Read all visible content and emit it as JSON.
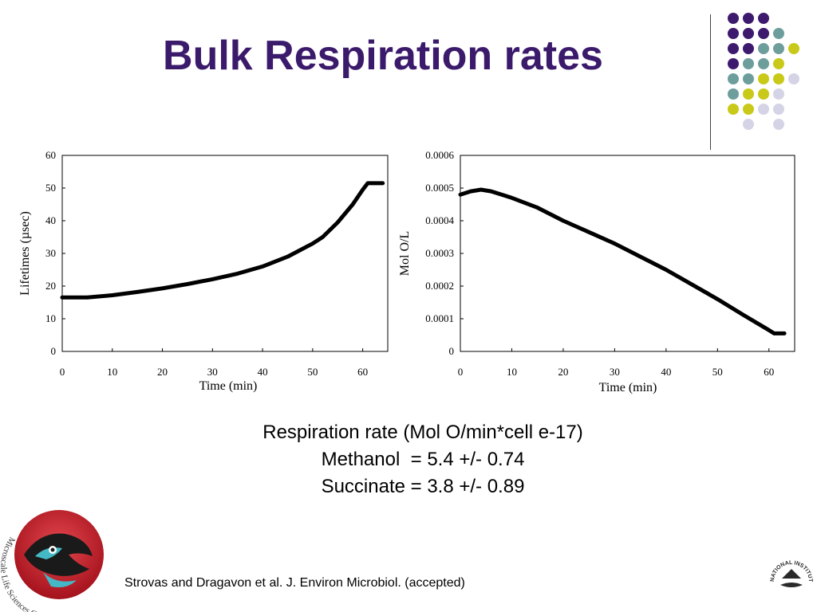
{
  "slide": {
    "title": "Bulk Respiration rates",
    "summary": {
      "line1": "Respiration rate (Mol O/min*cell e-17)",
      "line2": "Methanol  = 5.4 +/- 0.74",
      "line3": "Succinate = 3.8 +/- 0.89"
    },
    "citation": "Strovas and Dragavon et al. J. Environ Microbiol. (accepted)",
    "logos": {
      "left_text": "Microscale Life Sciences Center",
      "right_text": "NATIONAL INSTITUTES OF HEALTH"
    },
    "colors": {
      "title": "#3b1a6b",
      "dot_purple": "#3d1a6e",
      "dot_teal": "#6e9e9c",
      "dot_yellow": "#c9c919",
      "dot_lavender": "#d4d4e6"
    }
  },
  "chart_data": [
    {
      "type": "line",
      "xlabel": "Time (min)",
      "ylabel": "Lifetimes (µsec)",
      "xlim": [
        0,
        65
      ],
      "ylim": [
        0,
        60
      ],
      "xticks": [
        "0",
        "10",
        "20",
        "30",
        "40",
        "50",
        "60"
      ],
      "yticks": [
        "0",
        "10",
        "20",
        "30",
        "40",
        "50",
        "60"
      ],
      "grid": false,
      "series": [
        {
          "x": [
            0,
            5,
            10,
            15,
            20,
            25,
            30,
            35,
            40,
            45,
            50,
            52,
            55,
            58,
            60,
            61,
            62,
            63,
            64
          ],
          "y": [
            16.5,
            16.5,
            17.2,
            18.2,
            19.3,
            20.6,
            22.1,
            23.8,
            26,
            29,
            33,
            35,
            39.5,
            45,
            49.5,
            51.5,
            51.5,
            51.5,
            51.5
          ]
        }
      ]
    },
    {
      "type": "line",
      "xlabel": "Time (min)",
      "ylabel": "Mol O/L",
      "xlim": [
        0,
        65
      ],
      "ylim": [
        0,
        0.0006
      ],
      "xticks": [
        "0",
        "10",
        "20",
        "30",
        "40",
        "50",
        "60"
      ],
      "yticks": [
        "0",
        "0.0001",
        "0.0002",
        "0.0003",
        "0.0004",
        "0.0005",
        "0.0006"
      ],
      "grid": false,
      "series": [
        {
          "x": [
            0,
            2,
            4,
            6,
            10,
            15,
            20,
            25,
            30,
            35,
            40,
            45,
            50,
            55,
            60,
            61,
            62,
            63
          ],
          "y": [
            0.00048,
            0.00049,
            0.000495,
            0.00049,
            0.00047,
            0.00044,
            0.0004,
            0.000365,
            0.00033,
            0.00029,
            0.00025,
            0.000205,
            0.00016,
            0.000112,
            6.5e-05,
            5.5e-05,
            5.5e-05,
            5.5e-05
          ]
        }
      ]
    }
  ]
}
